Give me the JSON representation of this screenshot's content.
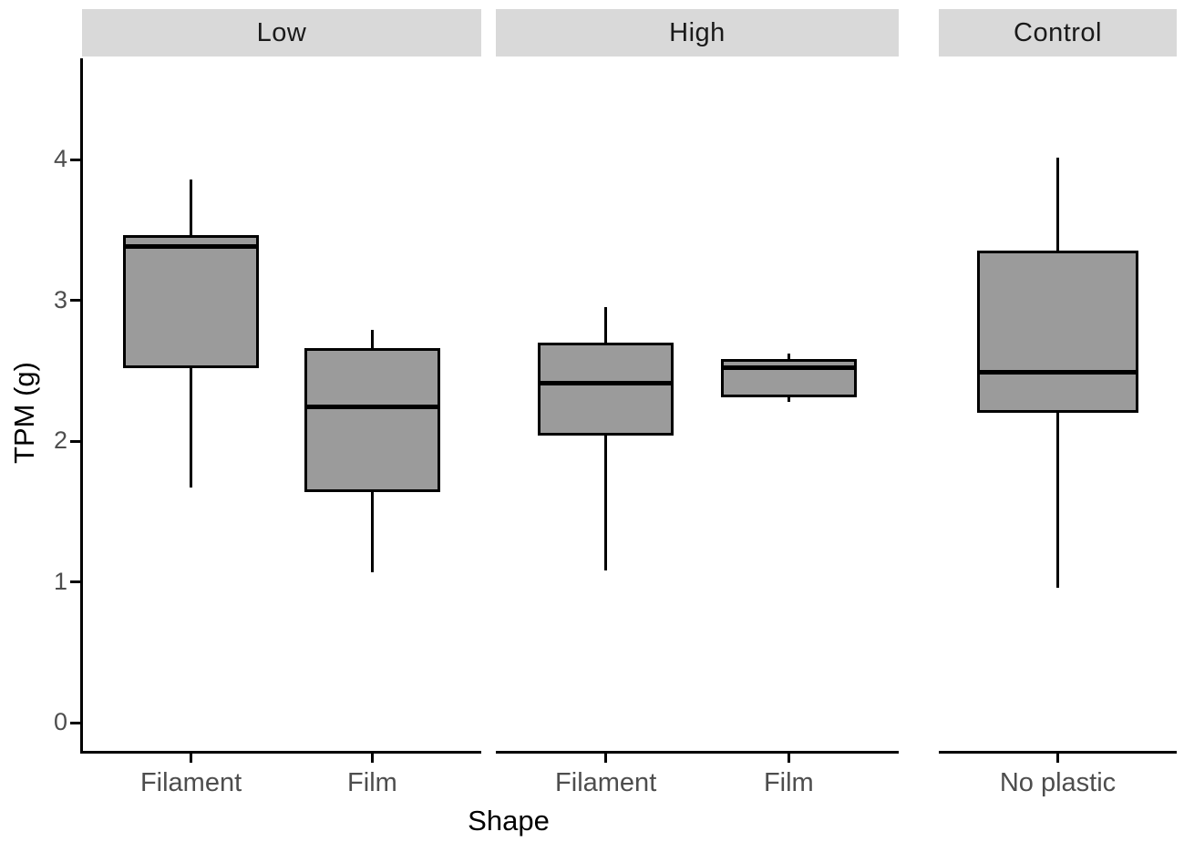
{
  "chart_data": {
    "type": "boxplot",
    "title": "",
    "xlabel": "Shape",
    "ylabel": "TPM (g)",
    "ylim": [
      -0.2,
      4.7
    ],
    "y_ticks": [
      4,
      3,
      2,
      1,
      0
    ],
    "grid": "off",
    "legend": "none",
    "facets": [
      {
        "label": "Low",
        "categories": [
          "Filament",
          "Film"
        ],
        "boxes": [
          {
            "category": "Filament",
            "min": 1.67,
            "q1": 2.52,
            "median": 3.38,
            "q3": 3.46,
            "max": 3.86
          },
          {
            "category": "Film",
            "min": 1.07,
            "q1": 1.64,
            "median": 2.24,
            "q3": 2.66,
            "max": 2.79
          }
        ]
      },
      {
        "label": "High",
        "categories": [
          "Filament",
          "Film"
        ],
        "boxes": [
          {
            "category": "Filament",
            "min": 1.08,
            "q1": 2.04,
            "median": 2.41,
            "q3": 2.7,
            "max": 2.95
          },
          {
            "category": "Film",
            "min": 2.28,
            "q1": 2.31,
            "median": 2.52,
            "q3": 2.58,
            "max": 2.62
          }
        ]
      },
      {
        "label": "Control",
        "categories": [
          "No plastic"
        ],
        "boxes": [
          {
            "category": "No plastic",
            "min": 0.96,
            "q1": 2.2,
            "median": 2.49,
            "q3": 3.35,
            "max": 4.01
          }
        ]
      }
    ],
    "style": {
      "box_fill": "#9b9b9b",
      "box_border": "#000000",
      "median_color": "#000000",
      "whisker_color": "#000000",
      "strip_bg": "#d9d9d9",
      "strip_text": "#1a1a1a",
      "tick_label_color": "#4d4d4d",
      "axis_title_color": "#000000",
      "background": "#ffffff"
    }
  }
}
